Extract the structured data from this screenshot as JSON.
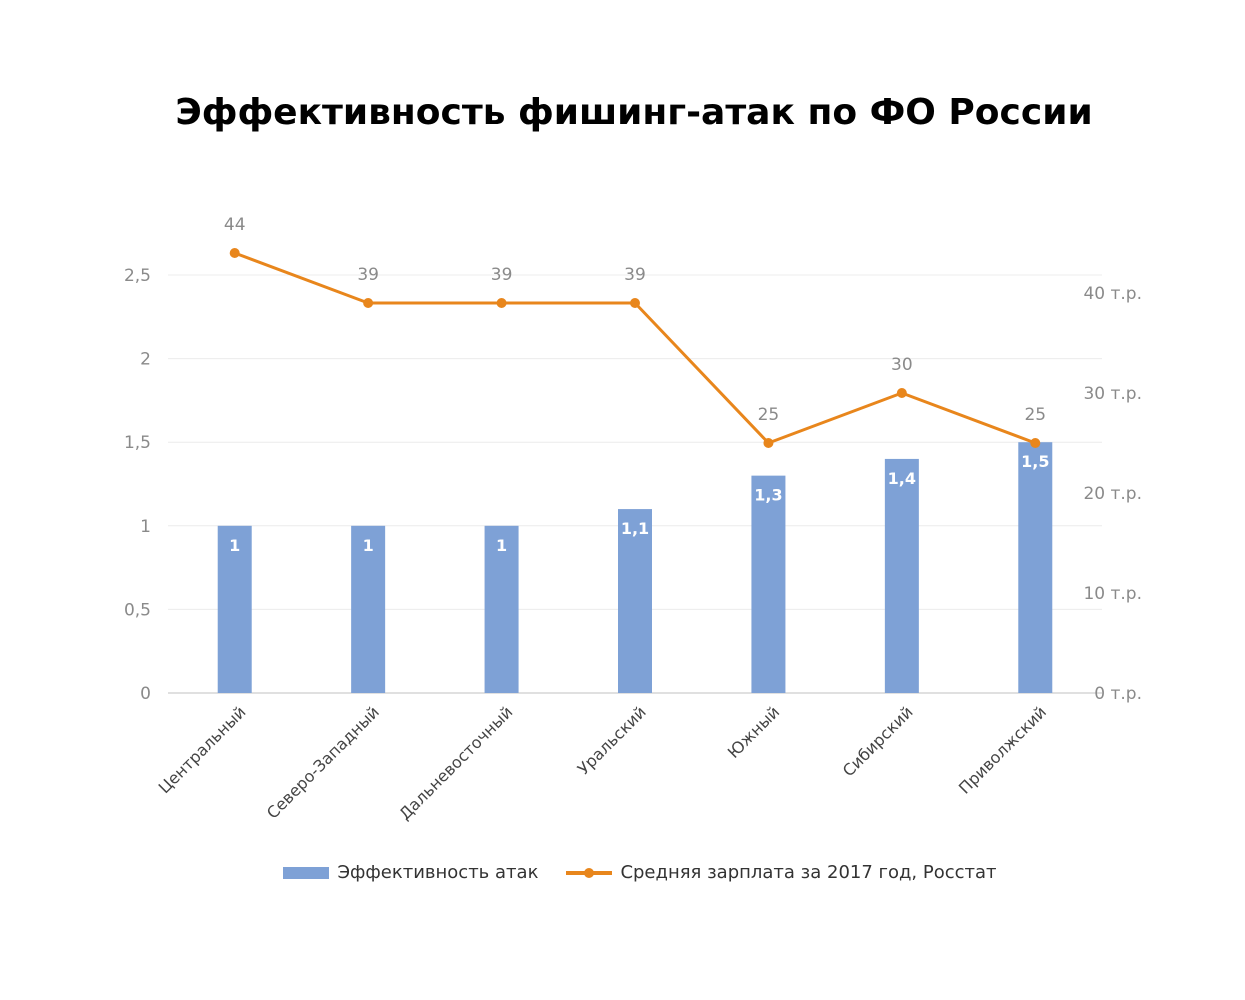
{
  "chart_data": {
    "type": "bar",
    "title": "Эффективность фишинг-атак по ФО России",
    "categories": [
      "Центральный",
      "Северо-Западный",
      "Дальневосточный",
      "Уральский",
      "Южный",
      "Сибирский",
      "Приволжский"
    ],
    "series": [
      {
        "name": "Эффективность атак",
        "type": "bar",
        "axis": "left",
        "color": "#7ea1d6",
        "values": [
          1,
          1,
          1,
          1.1,
          1.3,
          1.4,
          1.5
        ],
        "labels": [
          "1",
          "1",
          "1",
          "1,1",
          "1,3",
          "1,4",
          "1,5"
        ]
      },
      {
        "name": "Средняя зарплата за 2017 год, Росстат",
        "type": "line",
        "axis": "right",
        "color": "#e8861c",
        "values": [
          44,
          39,
          39,
          39,
          25,
          30,
          25
        ],
        "labels": [
          "44",
          "39",
          "39",
          "39",
          "25",
          "30",
          "25"
        ]
      }
    ],
    "left_axis": {
      "ylim": [
        0,
        2.5
      ],
      "ticks": [
        0,
        0.5,
        1,
        1.5,
        2,
        2.5
      ],
      "tick_labels": [
        "0",
        "0,5",
        "1",
        "1,5",
        "2",
        "2,5"
      ]
    },
    "right_axis": {
      "ylim": [
        0,
        40
      ],
      "ticks": [
        0,
        10,
        20,
        30,
        40
      ],
      "tick_labels": [
        "0 т.р.",
        "10 т.р.",
        "20 т.р.",
        "30 т.р.",
        "40 т.р."
      ]
    },
    "grid": true,
    "legend": "bottom"
  }
}
